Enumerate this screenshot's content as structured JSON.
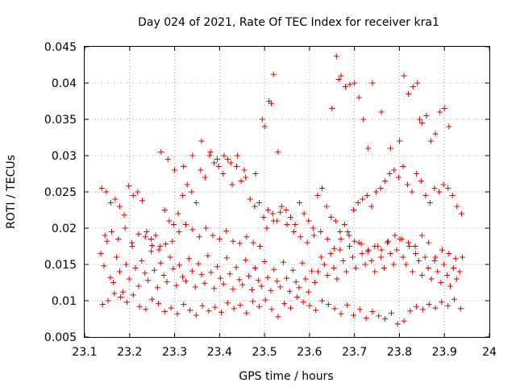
{
  "chart_data": {
    "type": "scatter",
    "title": "Day 024 of 2021, Rate Of TEC Index for receiver kra1",
    "xlabel": "GPS time / hours",
    "ylabel": "ROTI / TECUs",
    "xlim": [
      23.1,
      24.0
    ],
    "ylim": [
      0.005,
      0.045
    ],
    "x_ticks": [
      "23.1",
      "23.2",
      "23.3",
      "23.4",
      "23.5",
      "23.6",
      "23.7",
      "23.8",
      "23.9",
      "24"
    ],
    "y_ticks": [
      "0.005",
      "0.01",
      "0.015",
      "0.02",
      "0.025",
      "0.03",
      "0.035",
      "0.04",
      "0.045"
    ],
    "grid": true,
    "marker": "+",
    "color": "#dd0000",
    "series": [
      {
        "x": [
          23.136,
          23.143,
          23.15,
          23.157,
          23.164,
          23.171,
          23.178,
          23.185,
          23.192,
          23.199,
          23.206,
          23.213,
          23.22,
          23.227,
          23.234,
          23.241,
          23.248,
          23.255,
          23.262,
          23.269,
          23.276,
          23.283,
          23.29,
          23.297,
          23.304,
          23.311,
          23.318,
          23.325,
          23.332,
          23.339,
          23.346,
          23.353,
          23.36,
          23.367,
          23.374,
          23.381,
          23.388,
          23.395,
          23.402,
          23.409,
          23.416,
          23.423,
          23.43,
          23.437,
          23.444,
          23.451,
          23.458,
          23.465,
          23.472,
          23.479,
          23.486,
          23.493,
          23.5,
          23.507,
          23.514,
          23.521,
          23.528,
          23.535,
          23.542,
          23.549,
          23.556,
          23.563,
          23.57,
          23.577,
          23.584,
          23.591,
          23.598,
          23.605,
          23.612,
          23.619,
          23.626,
          23.633,
          23.64,
          23.647,
          23.654,
          23.661,
          23.668,
          23.675,
          23.682,
          23.689,
          23.696,
          23.703,
          23.71,
          23.717,
          23.724,
          23.731,
          23.738,
          23.745,
          23.752,
          23.759,
          23.766,
          23.773,
          23.78,
          23.787,
          23.794,
          23.801,
          23.808,
          23.815,
          23.822,
          23.829,
          23.836,
          23.843,
          23.85,
          23.857,
          23.864,
          23.871,
          23.878,
          23.885,
          23.892,
          23.899,
          23.906,
          23.913,
          23.92,
          23.927,
          23.934,
          23.94
        ],
        "y": [
          0.0165,
          0.0148,
          0.0182,
          0.0132,
          0.0125,
          0.016,
          0.014,
          0.0112,
          0.015,
          0.013,
          0.0175,
          0.0145,
          0.012,
          0.0155,
          0.0138,
          0.0128,
          0.0168,
          0.0142,
          0.0118,
          0.0152,
          0.0135,
          0.0126,
          0.016,
          0.0144,
          0.0121,
          0.0149,
          0.0133,
          0.0127,
          0.0158,
          0.0141,
          0.0119,
          0.0151,
          0.0136,
          0.0124,
          0.0162,
          0.0139,
          0.0117,
          0.0147,
          0.0131,
          0.0123,
          0.0159,
          0.0137,
          0.0116,
          0.0146,
          0.0129,
          0.0122,
          0.0156,
          0.0134,
          0.0115,
          0.0145,
          0.0128,
          0.012,
          0.0154,
          0.0132,
          0.0114,
          0.0143,
          0.0127,
          0.0119,
          0.0153,
          0.0131,
          0.0113,
          0.0142,
          0.0126,
          0.0118,
          0.0152,
          0.013,
          0.0112,
          0.0141,
          0.0125,
          0.014,
          0.016,
          0.015,
          0.0135,
          0.0165,
          0.0145,
          0.013,
          0.017,
          0.0155,
          0.014,
          0.0175,
          0.016,
          0.0145,
          0.018,
          0.0165,
          0.015,
          0.017,
          0.0155,
          0.014,
          0.0175,
          0.016,
          0.0145,
          0.018,
          0.0165,
          0.015,
          0.017,
          0.0185,
          0.016,
          0.015,
          0.0175,
          0.014,
          0.0165,
          0.0155,
          0.0135,
          0.016,
          0.0145,
          0.013,
          0.0155,
          0.014,
          0.0125,
          0.015,
          0.0135,
          0.012,
          0.0145,
          0.013,
          0.014,
          0.016
        ]
      },
      {
        "x": [
          23.14,
          23.152,
          23.166,
          23.18,
          23.194,
          23.208,
          23.222,
          23.236,
          23.25,
          23.264,
          23.278,
          23.292,
          23.306,
          23.32,
          23.334,
          23.348,
          23.362,
          23.376,
          23.39,
          23.404,
          23.418,
          23.432,
          23.446,
          23.46,
          23.474,
          23.488,
          23.502,
          23.516,
          23.53,
          23.544,
          23.558,
          23.572,
          23.586,
          23.6,
          23.614,
          23.628,
          23.642,
          23.656,
          23.67,
          23.684,
          23.698,
          23.712,
          23.726,
          23.74,
          23.754,
          23.768,
          23.782,
          23.796,
          23.81,
          23.824,
          23.838,
          23.852,
          23.866,
          23.88,
          23.894,
          23.908,
          23.922,
          23.936
        ],
        "y": [
          0.0095,
          0.01,
          0.011,
          0.0105,
          0.0098,
          0.0108,
          0.0092,
          0.0088,
          0.0102,
          0.0096,
          0.0085,
          0.009,
          0.0082,
          0.0095,
          0.0087,
          0.008,
          0.0093,
          0.0086,
          0.0091,
          0.0084,
          0.0097,
          0.0089,
          0.0094,
          0.0083,
          0.0099,
          0.0092,
          0.0101,
          0.0088,
          0.0078,
          0.0096,
          0.009,
          0.0105,
          0.0098,
          0.0093,
          0.0087,
          0.01,
          0.0095,
          0.0089,
          0.0082,
          0.0094,
          0.008,
          0.0088,
          0.0076,
          0.0085,
          0.0079,
          0.0075,
          0.0083,
          0.0068,
          0.0072,
          0.0086,
          0.0092,
          0.0088,
          0.0095,
          0.009,
          0.0098,
          0.0093,
          0.0102,
          0.0089
        ]
      },
      {
        "x": [
          23.138,
          23.148,
          23.158,
          23.168,
          23.178,
          23.188,
          23.198,
          23.208,
          23.218,
          23.228,
          23.238,
          23.248,
          23.258,
          23.268,
          23.278,
          23.288,
          23.298,
          23.308,
          23.318,
          23.328,
          23.338,
          23.348,
          23.358,
          23.368,
          23.378,
          23.388,
          23.398,
          23.408,
          23.418,
          23.428,
          23.438,
          23.448,
          23.458,
          23.468,
          23.478,
          23.488,
          23.498,
          23.508,
          23.518,
          23.528,
          23.538,
          23.548,
          23.558,
          23.568,
          23.578,
          23.588,
          23.598,
          23.608,
          23.618,
          23.628,
          23.638,
          23.648,
          23.658,
          23.668,
          23.678,
          23.688,
          23.698,
          23.708,
          23.718,
          23.728,
          23.738,
          23.748,
          23.758,
          23.768,
          23.778,
          23.788,
          23.798,
          23.808,
          23.818,
          23.828,
          23.838,
          23.848,
          23.858,
          23.868,
          23.878,
          23.888,
          23.898,
          23.908,
          23.918,
          23.928,
          23.938
        ],
        "y": [
          0.0255,
          0.025,
          0.0235,
          0.024,
          0.023,
          0.0218,
          0.0258,
          0.0245,
          0.025,
          0.0238,
          0.0195,
          0.0185,
          0.019,
          0.0175,
          0.0225,
          0.021,
          0.0205,
          0.022,
          0.0245,
          0.026,
          0.025,
          0.0235,
          0.028,
          0.027,
          0.03,
          0.029,
          0.0285,
          0.0275,
          0.0295,
          0.026,
          0.0285,
          0.0265,
          0.027,
          0.024,
          0.023,
          0.0235,
          0.0215,
          0.0225,
          0.022,
          0.021,
          0.023,
          0.0225,
          0.0215,
          0.0205,
          0.0235,
          0.022,
          0.021,
          0.02,
          0.0245,
          0.0255,
          0.023,
          0.0215,
          0.021,
          0.0195,
          0.0205,
          0.019,
          0.0225,
          0.0235,
          0.024,
          0.0245,
          0.023,
          0.025,
          0.0255,
          0.0265,
          0.0275,
          0.028,
          0.027,
          0.0285,
          0.026,
          0.025,
          0.0275,
          0.0265,
          0.0245,
          0.0235,
          0.0255,
          0.025,
          0.026,
          0.0255,
          0.0245,
          0.023,
          0.022
        ]
      },
      {
        "x": [
          23.27,
          23.285,
          23.3,
          23.32,
          23.34,
          23.36,
          23.38,
          23.395,
          23.41,
          23.425,
          23.44,
          23.455,
          23.48,
          23.495,
          23.5,
          23.51,
          23.515,
          23.52,
          23.53,
          23.65,
          23.66,
          23.665,
          23.67,
          23.68,
          23.69,
          23.7,
          23.71,
          23.72,
          23.73,
          23.74,
          23.76,
          23.78,
          23.8,
          23.81,
          23.82,
          23.83,
          23.84,
          23.845,
          23.85,
          23.86,
          23.87,
          23.88,
          23.89,
          23.9,
          23.91
        ],
        "y": [
          0.0305,
          0.0295,
          0.028,
          0.0285,
          0.03,
          0.032,
          0.0305,
          0.0295,
          0.03,
          0.029,
          0.03,
          0.028,
          0.0275,
          0.035,
          0.034,
          0.0375,
          0.0372,
          0.0412,
          0.0305,
          0.0365,
          0.0437,
          0.0405,
          0.041,
          0.0395,
          0.0398,
          0.04,
          0.038,
          0.035,
          0.031,
          0.04,
          0.036,
          0.031,
          0.032,
          0.041,
          0.0385,
          0.0395,
          0.04,
          0.035,
          0.0345,
          0.0355,
          0.032,
          0.033,
          0.036,
          0.0365,
          0.034
        ]
      },
      {
        "x": [
          23.145,
          23.16,
          23.175,
          23.19,
          23.205,
          23.22,
          23.235,
          23.25,
          23.265,
          23.28,
          23.295,
          23.31,
          23.325,
          23.34,
          23.355,
          23.37,
          23.385,
          23.4,
          23.415,
          23.43,
          23.445,
          23.46,
          23.475,
          23.49,
          23.505,
          23.52,
          23.535,
          23.55,
          23.565,
          23.58,
          23.595,
          23.61,
          23.625,
          23.64,
          23.655,
          23.67,
          23.685,
          23.7,
          23.715,
          23.73,
          23.745,
          23.76,
          23.775,
          23.79,
          23.805,
          23.82,
          23.835,
          23.85,
          23.865,
          23.88,
          23.895,
          23.91,
          23.925
        ],
        "y": [
          0.019,
          0.0195,
          0.0185,
          0.02,
          0.018,
          0.0192,
          0.0188,
          0.0176,
          0.017,
          0.0178,
          0.0182,
          0.0195,
          0.0205,
          0.0198,
          0.0188,
          0.02,
          0.019,
          0.0185,
          0.0196,
          0.0182,
          0.0179,
          0.0188,
          0.018,
          0.0175,
          0.02,
          0.021,
          0.0222,
          0.0205,
          0.0195,
          0.0188,
          0.018,
          0.019,
          0.0195,
          0.0185,
          0.0172,
          0.0185,
          0.0195,
          0.0182,
          0.0178,
          0.0168,
          0.0175,
          0.017,
          0.0182,
          0.019,
          0.0185,
          0.018,
          0.0175,
          0.019,
          0.018,
          0.016,
          0.017,
          0.0165,
          0.0158
        ]
      }
    ]
  }
}
